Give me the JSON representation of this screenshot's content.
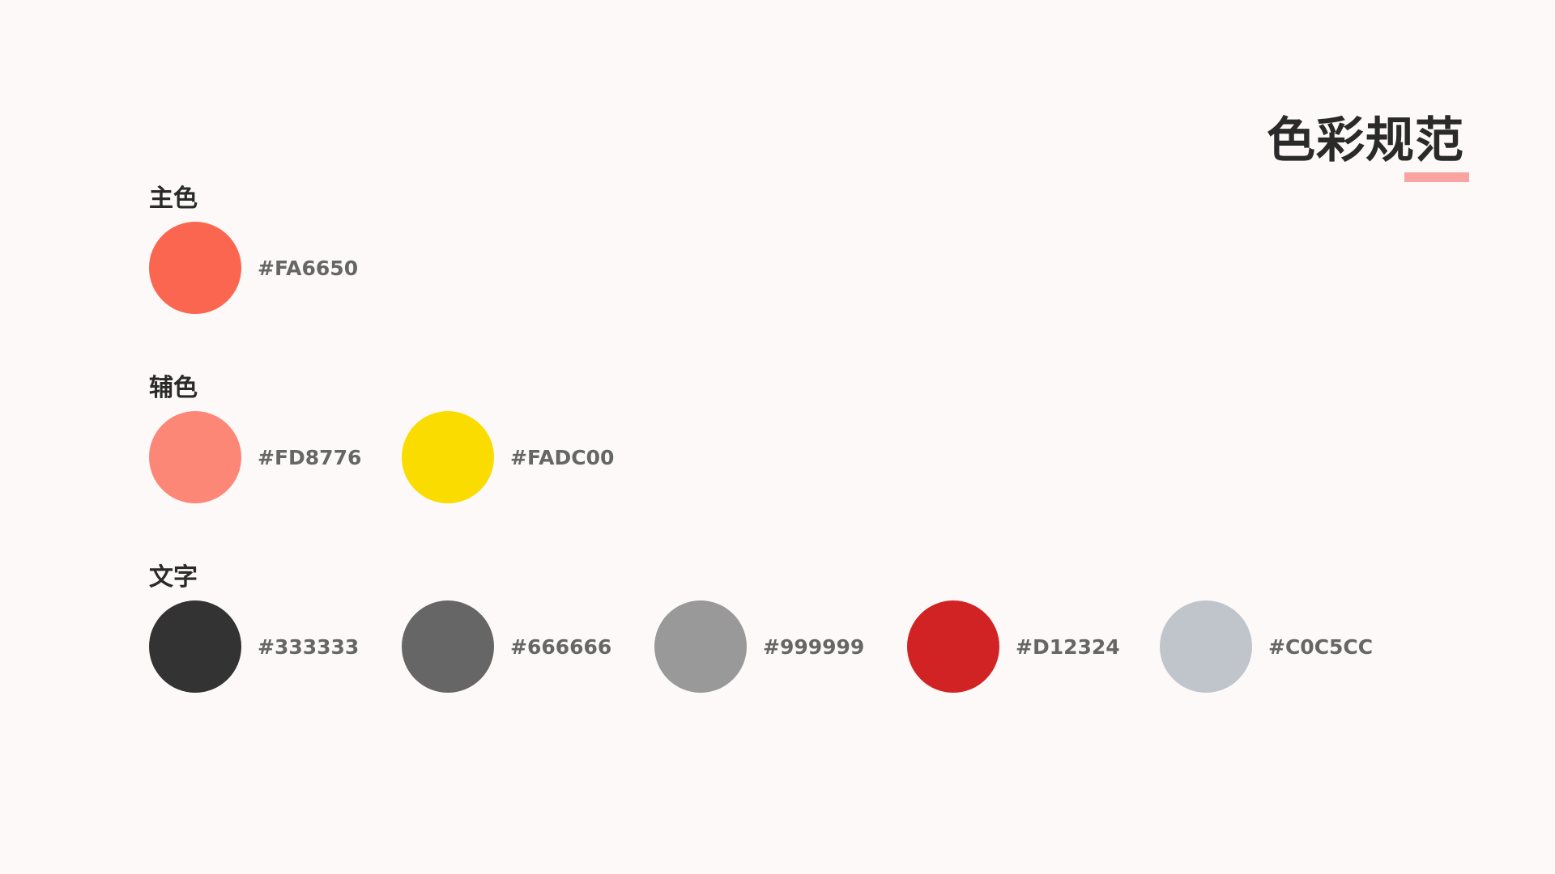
{
  "title": "色彩规范",
  "accent_color": "#F9A3A3",
  "sections": [
    {
      "label": "主色",
      "colors": [
        {
          "hex": "#FA6650"
        }
      ]
    },
    {
      "label": "辅色",
      "colors": [
        {
          "hex": "#FD8776"
        },
        {
          "hex": "#FADC00"
        }
      ]
    },
    {
      "label": "文字",
      "colors": [
        {
          "hex": "#333333"
        },
        {
          "hex": "#666666"
        },
        {
          "hex": "#999999"
        },
        {
          "hex": "#D12324"
        },
        {
          "hex": "#C0C5CC"
        }
      ]
    }
  ]
}
